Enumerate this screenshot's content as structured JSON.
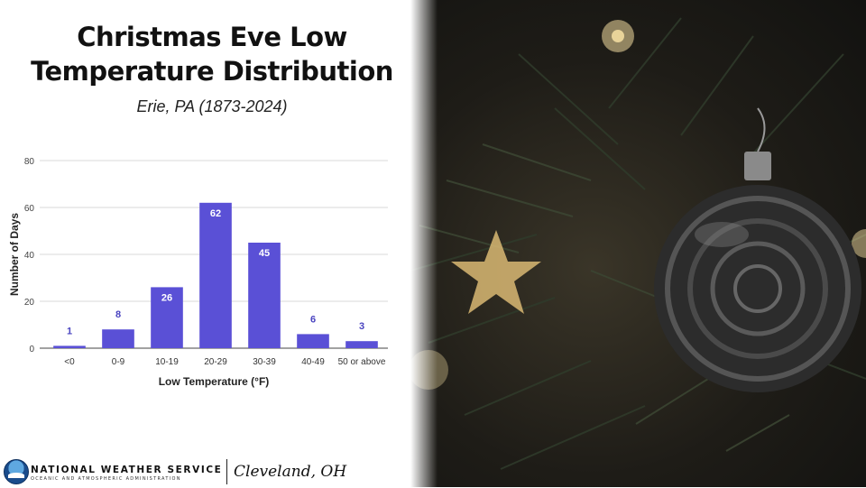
{
  "header": {
    "title_line1": "Christmas Eve Low",
    "title_line2": "Temperature Distribution",
    "subtitle": "Erie, PA (1873-2024)"
  },
  "footer": {
    "agency": "NATIONAL WEATHER SERVICE",
    "agency_sub": "OCEANIC AND ATMOSPHERIC ADMINISTRATION",
    "office": "Cleveland, OH"
  },
  "colors": {
    "bar": "#5a50d6",
    "grid": "#d9d9d9",
    "baseline": "#444444",
    "label_outside": "#4a44c0",
    "label_inside": "#ffffff"
  },
  "chart_data": {
    "type": "bar",
    "categories": [
      "<0",
      "0-9",
      "10-19",
      "20-29",
      "30-39",
      "40-49",
      "50 or above"
    ],
    "values": [
      1,
      8,
      26,
      62,
      45,
      6,
      3
    ],
    "xlabel": "Low Temperature (°F)",
    "ylabel": "Number of Days",
    "ylim": [
      0,
      80
    ],
    "yticks": [
      0,
      20,
      40,
      60,
      80
    ],
    "grid": true,
    "legend": "none",
    "data_labels": true
  }
}
